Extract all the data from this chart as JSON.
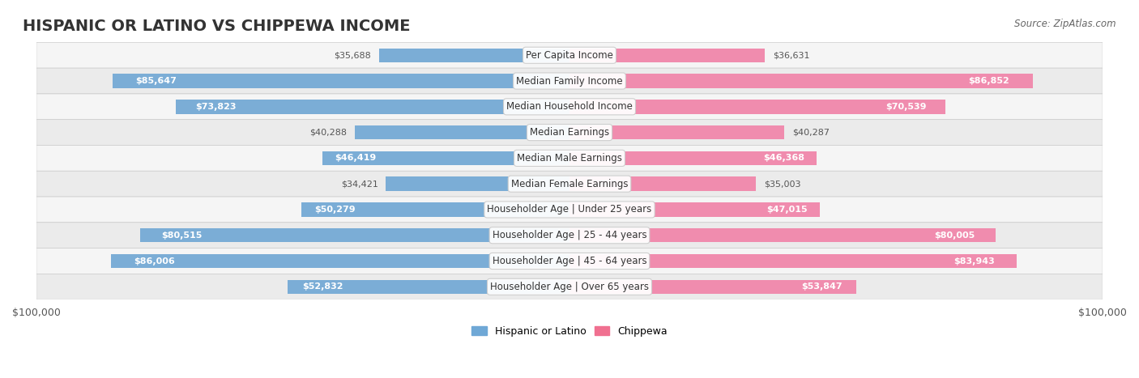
{
  "title": "HISPANIC OR LATINO VS CHIPPEWA INCOME",
  "source": "Source: ZipAtlas.com",
  "categories": [
    "Per Capita Income",
    "Median Family Income",
    "Median Household Income",
    "Median Earnings",
    "Median Male Earnings",
    "Median Female Earnings",
    "Householder Age | Under 25 years",
    "Householder Age | 25 - 44 years",
    "Householder Age | 45 - 64 years",
    "Householder Age | Over 65 years"
  ],
  "hispanic_values": [
    35688,
    85647,
    73823,
    40288,
    46419,
    34421,
    50279,
    80515,
    86006,
    52832
  ],
  "chippewa_values": [
    36631,
    86852,
    70539,
    40287,
    46368,
    35003,
    47015,
    80005,
    83943,
    53847
  ],
  "hispanic_labels": [
    "$35,688",
    "$85,647",
    "$73,823",
    "$40,288",
    "$46,419",
    "$34,421",
    "$50,279",
    "$80,515",
    "$86,006",
    "$52,832"
  ],
  "chippewa_labels": [
    "$36,631",
    "$86,852",
    "$70,539",
    "$40,287",
    "$46,368",
    "$35,003",
    "$47,015",
    "$80,005",
    "$83,943",
    "$53,847"
  ],
  "max_value": 100000,
  "hispanic_color": "#7badd6",
  "chippewa_color": "#f08cae",
  "hispanic_color_dark": "#5b8fc7",
  "chippewa_color_dark": "#e85c8a",
  "hispanic_legend_color": "#6fa8d6",
  "chippewa_legend_color": "#f07090",
  "row_bg_color": "#f0f0f0",
  "row_bg_alt_color": "#e8e8e8",
  "bar_height": 0.55,
  "title_fontsize": 14,
  "label_fontsize": 9,
  "axis_label_fontsize": 9
}
